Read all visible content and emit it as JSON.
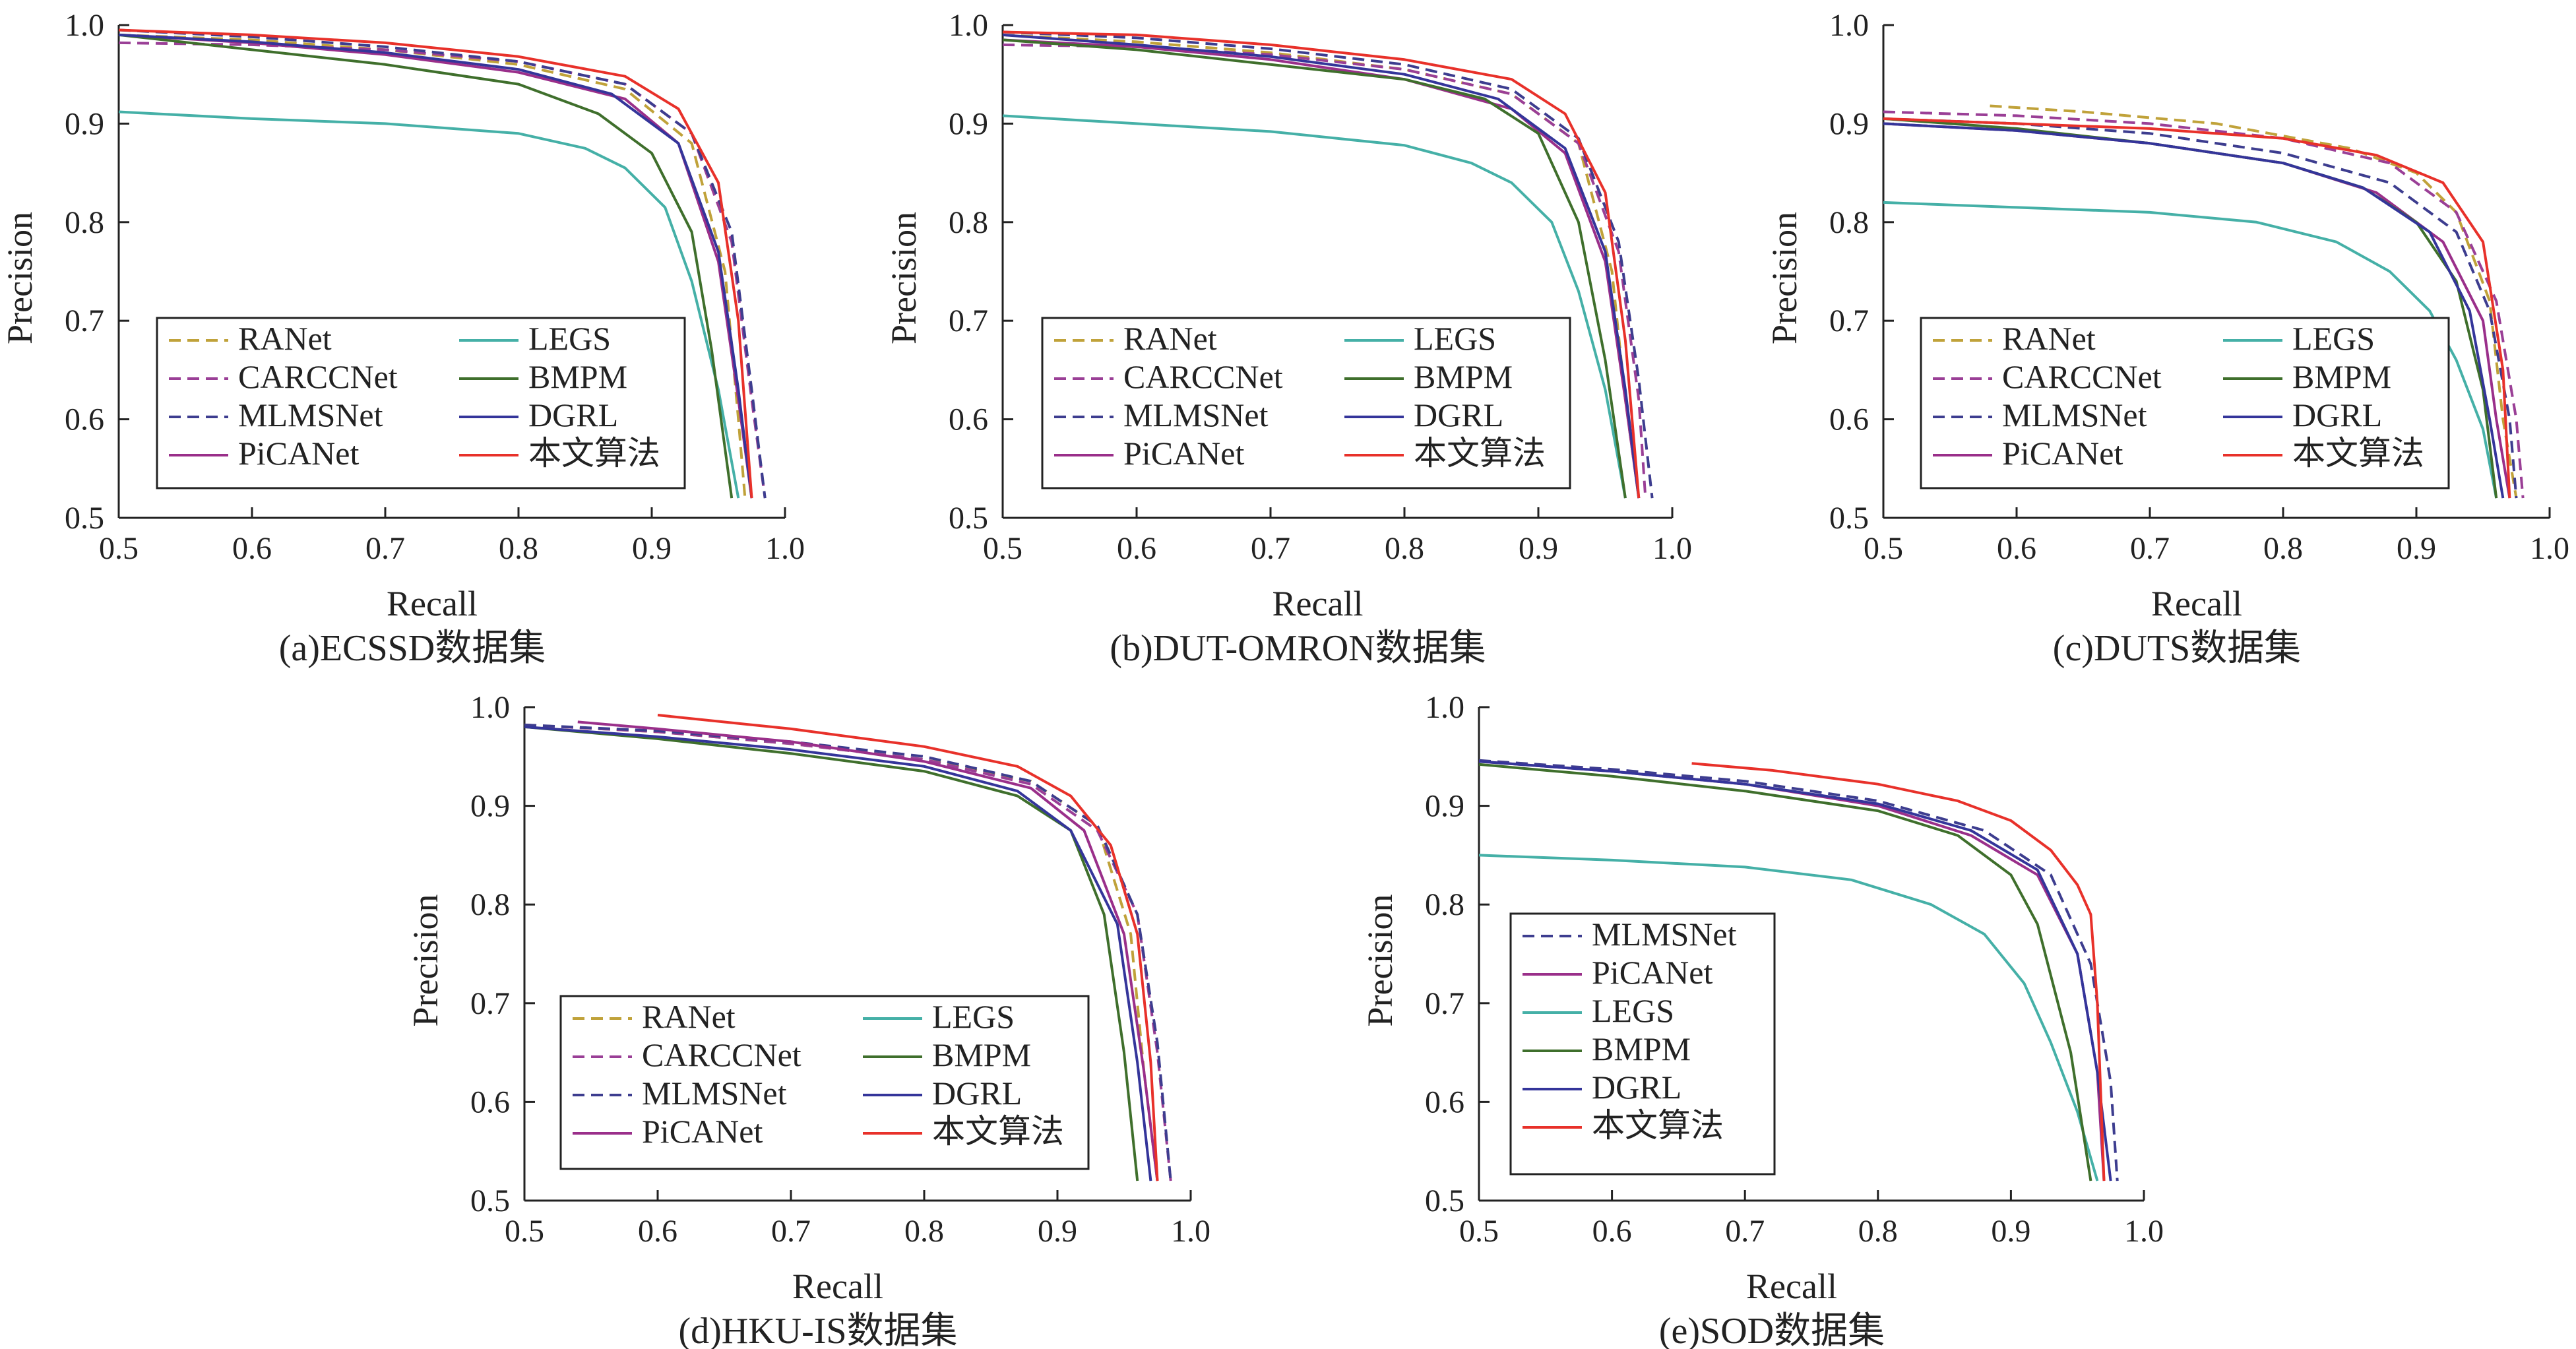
{
  "styles": {
    "RANet": {
      "color": "#c0a23a",
      "dash": true
    },
    "CARCCNet": {
      "color": "#9a3f96",
      "dash": true
    },
    "MLMSNet": {
      "color": "#3d3d8f",
      "dash": true
    },
    "PiCANet": {
      "color": "#9a2f8a",
      "dash": false
    },
    "LEGS": {
      "color": "#45b0a7",
      "dash": false
    },
    "BMPM": {
      "color": "#3f6f2c",
      "dash": false
    },
    "DGRL": {
      "color": "#34359a",
      "dash": false
    },
    "本文算法": {
      "color": "#e8312a",
      "dash": false
    }
  },
  "chart_data": [
    {
      "type": "line",
      "caption": "(a)ECSSD数据集",
      "xlabel": "Recall",
      "ylabel": "Precision",
      "xlim": [
        0.5,
        1.0
      ],
      "ylim": [
        0.5,
        1.0
      ],
      "xticks": [
        "0.5",
        "0.6",
        "0.7",
        "0.8",
        "0.9",
        "1.0"
      ],
      "yticks": [
        "0.5",
        "0.6",
        "0.7",
        "0.8",
        "0.9",
        "1.0"
      ],
      "legend_order": [
        "RANet",
        "LEGS",
        "CARCCNet",
        "BMPM",
        "MLMSNet",
        "DGRL",
        "PiCANet",
        "本文算法"
      ],
      "series": [
        {
          "name": "RANet",
          "x": [
            0.5,
            0.6,
            0.7,
            0.8,
            0.88,
            0.93,
            0.955,
            0.965,
            0.97
          ],
          "y": [
            0.99,
            0.985,
            0.975,
            0.96,
            0.935,
            0.88,
            0.75,
            0.6,
            0.52
          ]
        },
        {
          "name": "CARCCNet",
          "x": [
            0.5,
            0.6,
            0.7,
            0.8,
            0.88,
            0.93,
            0.96,
            0.975,
            0.985
          ],
          "y": [
            0.982,
            0.98,
            0.975,
            0.963,
            0.94,
            0.89,
            0.78,
            0.62,
            0.52
          ]
        },
        {
          "name": "MLMSNet",
          "x": [
            0.5,
            0.6,
            0.7,
            0.8,
            0.88,
            0.93,
            0.96,
            0.975,
            0.985
          ],
          "y": [
            0.995,
            0.988,
            0.978,
            0.963,
            0.94,
            0.89,
            0.79,
            0.63,
            0.52
          ]
        },
        {
          "name": "PiCANet",
          "x": [
            0.5,
            0.6,
            0.7,
            0.8,
            0.88,
            0.92,
            0.95,
            0.965,
            0.975
          ],
          "y": [
            0.99,
            0.982,
            0.97,
            0.952,
            0.925,
            0.88,
            0.76,
            0.62,
            0.52
          ]
        },
        {
          "name": "LEGS",
          "x": [
            0.5,
            0.6,
            0.7,
            0.8,
            0.85,
            0.88,
            0.91,
            0.93,
            0.95,
            0.965
          ],
          "y": [
            0.912,
            0.905,
            0.9,
            0.89,
            0.875,
            0.855,
            0.815,
            0.74,
            0.63,
            0.52
          ]
        },
        {
          "name": "BMPM",
          "x": [
            0.5,
            0.6,
            0.7,
            0.8,
            0.86,
            0.9,
            0.93,
            0.945,
            0.96
          ],
          "y": [
            0.99,
            0.975,
            0.96,
            0.94,
            0.91,
            0.87,
            0.79,
            0.67,
            0.52
          ]
        },
        {
          "name": "DGRL",
          "x": [
            0.5,
            0.6,
            0.7,
            0.8,
            0.87,
            0.92,
            0.95,
            0.965,
            0.975
          ],
          "y": [
            0.99,
            0.983,
            0.972,
            0.955,
            0.93,
            0.88,
            0.77,
            0.63,
            0.52
          ]
        },
        {
          "name": "本文算法",
          "x": [
            0.5,
            0.6,
            0.7,
            0.8,
            0.88,
            0.92,
            0.95,
            0.965,
            0.975
          ],
          "y": [
            0.995,
            0.99,
            0.982,
            0.968,
            0.948,
            0.915,
            0.84,
            0.7,
            0.52
          ]
        }
      ]
    },
    {
      "type": "line",
      "caption": "(b)DUT-OMRON数据集",
      "xlabel": "Recall",
      "ylabel": "Precision",
      "xlim": [
        0.5,
        1.0
      ],
      "ylim": [
        0.5,
        1.0
      ],
      "xticks": [
        "0.5",
        "0.6",
        "0.7",
        "0.8",
        "0.9",
        "1.0"
      ],
      "yticks": [
        "0.5",
        "0.6",
        "0.7",
        "0.8",
        "0.9",
        "1.0"
      ],
      "legend_order": [
        "RANet",
        "LEGS",
        "CARCCNet",
        "BMPM",
        "MLMSNet",
        "DGRL",
        "PiCANet",
        "本文算法"
      ],
      "series": [
        {
          "name": "RANet",
          "x": [
            0.5,
            0.6,
            0.7,
            0.8,
            0.88,
            0.93,
            0.955,
            0.965,
            0.975
          ],
          "y": [
            0.99,
            0.983,
            0.972,
            0.955,
            0.93,
            0.88,
            0.75,
            0.62,
            0.52
          ]
        },
        {
          "name": "CARCCNet",
          "x": [
            0.5,
            0.6,
            0.7,
            0.8,
            0.88,
            0.93,
            0.96,
            0.975,
            0.98
          ],
          "y": [
            0.98,
            0.978,
            0.97,
            0.955,
            0.93,
            0.88,
            0.77,
            0.62,
            0.52
          ]
        },
        {
          "name": "MLMSNet",
          "x": [
            0.5,
            0.6,
            0.7,
            0.8,
            0.88,
            0.93,
            0.96,
            0.975,
            0.985
          ],
          "y": [
            0.993,
            0.987,
            0.976,
            0.96,
            0.935,
            0.885,
            0.78,
            0.64,
            0.52
          ]
        },
        {
          "name": "PiCANet",
          "x": [
            0.5,
            0.6,
            0.7,
            0.8,
            0.88,
            0.92,
            0.95,
            0.965,
            0.975
          ],
          "y": [
            0.985,
            0.978,
            0.965,
            0.945,
            0.915,
            0.87,
            0.76,
            0.62,
            0.52
          ]
        },
        {
          "name": "LEGS",
          "x": [
            0.5,
            0.6,
            0.7,
            0.8,
            0.85,
            0.88,
            0.91,
            0.93,
            0.95,
            0.965
          ],
          "y": [
            0.908,
            0.9,
            0.892,
            0.878,
            0.86,
            0.84,
            0.8,
            0.73,
            0.63,
            0.52
          ]
        },
        {
          "name": "BMPM",
          "x": [
            0.5,
            0.6,
            0.7,
            0.8,
            0.86,
            0.9,
            0.93,
            0.95,
            0.965
          ],
          "y": [
            0.985,
            0.975,
            0.96,
            0.945,
            0.925,
            0.89,
            0.8,
            0.66,
            0.52
          ]
        },
        {
          "name": "DGRL",
          "x": [
            0.5,
            0.6,
            0.7,
            0.8,
            0.87,
            0.92,
            0.95,
            0.965,
            0.975
          ],
          "y": [
            0.99,
            0.98,
            0.968,
            0.95,
            0.925,
            0.875,
            0.77,
            0.63,
            0.52
          ]
        },
        {
          "name": "本文算法",
          "x": [
            0.5,
            0.6,
            0.7,
            0.8,
            0.88,
            0.92,
            0.95,
            0.965,
            0.975
          ],
          "y": [
            0.993,
            0.99,
            0.98,
            0.965,
            0.945,
            0.91,
            0.83,
            0.68,
            0.52
          ]
        }
      ]
    },
    {
      "type": "line",
      "caption": "(c)DUTS数据集",
      "xlabel": "Recall",
      "ylabel": "Precision",
      "xlim": [
        0.5,
        1.0
      ],
      "ylim": [
        0.5,
        1.0
      ],
      "xticks": [
        "0.5",
        "0.6",
        "0.7",
        "0.8",
        "0.9",
        "1.0"
      ],
      "yticks": [
        "0.5",
        "0.6",
        "0.7",
        "0.8",
        "0.9",
        "1.0"
      ],
      "legend_order": [
        "RANet",
        "LEGS",
        "CARCCNet",
        "BMPM",
        "MLMSNet",
        "DGRL",
        "PiCANet",
        "本文算法"
      ],
      "series": [
        {
          "name": "RANet",
          "x": [
            0.58,
            0.65,
            0.75,
            0.85,
            0.9,
            0.93,
            0.955,
            0.965,
            0.975
          ],
          "y": [
            0.918,
            0.912,
            0.9,
            0.875,
            0.85,
            0.81,
            0.72,
            0.6,
            0.52
          ]
        },
        {
          "name": "CARCCNet",
          "x": [
            0.5,
            0.6,
            0.7,
            0.8,
            0.88,
            0.93,
            0.96,
            0.975,
            0.98
          ],
          "y": [
            0.912,
            0.908,
            0.9,
            0.885,
            0.86,
            0.81,
            0.72,
            0.6,
            0.52
          ]
        },
        {
          "name": "MLMSNet",
          "x": [
            0.5,
            0.6,
            0.7,
            0.8,
            0.88,
            0.93,
            0.955,
            0.97,
            0.975
          ],
          "y": [
            0.905,
            0.9,
            0.89,
            0.87,
            0.84,
            0.79,
            0.71,
            0.6,
            0.52
          ]
        },
        {
          "name": "PiCANet",
          "x": [
            0.5,
            0.6,
            0.7,
            0.8,
            0.87,
            0.92,
            0.95,
            0.96,
            0.97
          ],
          "y": [
            0.9,
            0.893,
            0.88,
            0.86,
            0.83,
            0.78,
            0.7,
            0.6,
            0.52
          ]
        },
        {
          "name": "LEGS",
          "x": [
            0.5,
            0.6,
            0.7,
            0.78,
            0.84,
            0.88,
            0.91,
            0.93,
            0.95,
            0.96
          ],
          "y": [
            0.82,
            0.815,
            0.81,
            0.8,
            0.78,
            0.75,
            0.71,
            0.66,
            0.59,
            0.52
          ]
        },
        {
          "name": "BMPM",
          "x": [
            0.5,
            0.6,
            0.7,
            0.8,
            0.86,
            0.9,
            0.93,
            0.95,
            0.96
          ],
          "y": [
            0.905,
            0.895,
            0.88,
            0.86,
            0.835,
            0.8,
            0.74,
            0.63,
            0.52
          ]
        },
        {
          "name": "DGRL",
          "x": [
            0.5,
            0.6,
            0.7,
            0.8,
            0.86,
            0.91,
            0.94,
            0.955,
            0.965
          ],
          "y": [
            0.9,
            0.893,
            0.88,
            0.86,
            0.835,
            0.79,
            0.71,
            0.6,
            0.52
          ]
        },
        {
          "name": "本文算法",
          "x": [
            0.5,
            0.6,
            0.7,
            0.8,
            0.87,
            0.92,
            0.95,
            0.965,
            0.97
          ],
          "y": [
            0.905,
            0.9,
            0.895,
            0.885,
            0.868,
            0.84,
            0.78,
            0.65,
            0.52
          ]
        }
      ]
    },
    {
      "type": "line",
      "caption": "(d)HKU-IS数据集",
      "xlabel": "Recall",
      "ylabel": "Precision",
      "xlim": [
        0.5,
        1.0
      ],
      "ylim": [
        0.5,
        1.0
      ],
      "xticks": [
        "0.5",
        "0.6",
        "0.7",
        "0.8",
        "0.9",
        "1.0"
      ],
      "yticks": [
        "0.5",
        "0.6",
        "0.7",
        "0.8",
        "0.9",
        "1.0"
      ],
      "legend_order": [
        "RANet",
        "LEGS",
        "CARCCNet",
        "BMPM",
        "MLMSNet",
        "DGRL",
        "PiCANet",
        "本文算法"
      ],
      "series": [
        {
          "name": "RANet",
          "x": [
            0.5,
            0.6,
            0.7,
            0.8,
            0.88,
            0.93,
            0.955,
            0.965,
            0.975
          ],
          "y": [
            0.982,
            0.975,
            0.963,
            0.947,
            0.925,
            0.88,
            0.77,
            0.63,
            0.52
          ]
        },
        {
          "name": "CARCCNet",
          "x": [
            0.5,
            0.6,
            0.7,
            0.8,
            0.88,
            0.93,
            0.96,
            0.975,
            0.985
          ],
          "y": [
            0.982,
            0.975,
            0.963,
            0.947,
            0.922,
            0.875,
            0.79,
            0.65,
            0.52
          ]
        },
        {
          "name": "MLMSNet",
          "x": [
            0.5,
            0.6,
            0.7,
            0.8,
            0.88,
            0.93,
            0.96,
            0.975,
            0.985
          ],
          "y": [
            0.982,
            0.976,
            0.965,
            0.95,
            0.925,
            0.88,
            0.79,
            0.66,
            0.52
          ]
        },
        {
          "name": "PiCANet",
          "x": [
            0.54,
            0.6,
            0.7,
            0.8,
            0.88,
            0.92,
            0.95,
            0.965,
            0.975
          ],
          "y": [
            0.985,
            0.978,
            0.965,
            0.945,
            0.918,
            0.875,
            0.77,
            0.63,
            0.52
          ]
        },
        {
          "name": "BMPM",
          "x": [
            0.5,
            0.6,
            0.7,
            0.8,
            0.87,
            0.91,
            0.935,
            0.95,
            0.96
          ],
          "y": [
            0.98,
            0.968,
            0.953,
            0.935,
            0.91,
            0.875,
            0.79,
            0.65,
            0.52
          ]
        },
        {
          "name": "DGRL",
          "x": [
            0.5,
            0.6,
            0.7,
            0.8,
            0.87,
            0.91,
            0.945,
            0.96,
            0.97
          ],
          "y": [
            0.98,
            0.97,
            0.957,
            0.94,
            0.915,
            0.875,
            0.78,
            0.64,
            0.52
          ]
        },
        {
          "name": "本文算法",
          "x": [
            0.6,
            0.7,
            0.8,
            0.87,
            0.91,
            0.94,
            0.96,
            0.97,
            0.975
          ],
          "y": [
            0.992,
            0.978,
            0.96,
            0.94,
            0.91,
            0.86,
            0.77,
            0.64,
            0.52
          ]
        }
      ]
    },
    {
      "type": "line",
      "caption": "(e)SOD数据集",
      "xlabel": "Recall",
      "ylabel": "Precision",
      "xlim": [
        0.5,
        1.0
      ],
      "ylim": [
        0.5,
        1.0
      ],
      "xticks": [
        "0.5",
        "0.6",
        "0.7",
        "0.8",
        "0.9",
        "1.0"
      ],
      "yticks": [
        "0.5",
        "0.6",
        "0.7",
        "0.8",
        "0.9",
        "1.0"
      ],
      "legend_order": [
        "MLMSNet",
        "PiCANet",
        "LEGS",
        "BMPM",
        "DGRL",
        "本文算法"
      ],
      "series": [
        {
          "name": "MLMSNet",
          "x": [
            0.5,
            0.6,
            0.7,
            0.8,
            0.88,
            0.93,
            0.96,
            0.975,
            0.98
          ],
          "y": [
            0.946,
            0.937,
            0.925,
            0.905,
            0.875,
            0.83,
            0.74,
            0.62,
            0.52
          ]
        },
        {
          "name": "PiCANet",
          "x": [
            0.5,
            0.6,
            0.7,
            0.8,
            0.87,
            0.92,
            0.95,
            0.965,
            0.97
          ],
          "y": [
            0.945,
            0.935,
            0.922,
            0.9,
            0.87,
            0.83,
            0.75,
            0.63,
            0.52
          ]
        },
        {
          "name": "LEGS",
          "x": [
            0.5,
            0.6,
            0.7,
            0.78,
            0.84,
            0.88,
            0.91,
            0.93,
            0.95,
            0.965
          ],
          "y": [
            0.85,
            0.845,
            0.838,
            0.825,
            0.8,
            0.77,
            0.72,
            0.66,
            0.59,
            0.52
          ]
        },
        {
          "name": "BMPM",
          "x": [
            0.5,
            0.6,
            0.7,
            0.8,
            0.86,
            0.9,
            0.92,
            0.945,
            0.96
          ],
          "y": [
            0.942,
            0.93,
            0.915,
            0.895,
            0.87,
            0.83,
            0.78,
            0.65,
            0.52
          ]
        },
        {
          "name": "DGRL",
          "x": [
            0.5,
            0.6,
            0.7,
            0.8,
            0.87,
            0.92,
            0.95,
            0.965,
            0.975
          ],
          "y": [
            0.945,
            0.935,
            0.922,
            0.902,
            0.875,
            0.835,
            0.75,
            0.63,
            0.52
          ]
        },
        {
          "name": "本文算法",
          "x": [
            0.66,
            0.72,
            0.8,
            0.86,
            0.9,
            0.93,
            0.95,
            0.96,
            0.965,
            0.97
          ],
          "y": [
            0.943,
            0.936,
            0.922,
            0.905,
            0.885,
            0.855,
            0.82,
            0.79,
            0.7,
            0.52
          ]
        }
      ]
    }
  ]
}
